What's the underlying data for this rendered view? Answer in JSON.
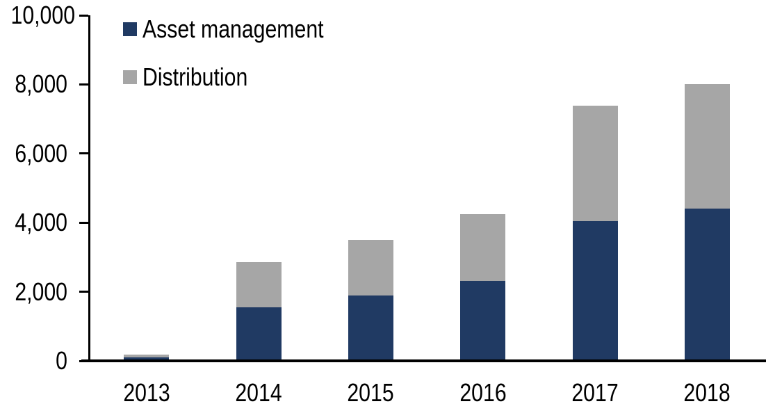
{
  "chart_data": {
    "type": "bar",
    "stacked": true,
    "title": "",
    "xlabel": "",
    "ylabel": "",
    "categories": [
      "2013",
      "2014",
      "2015",
      "2016",
      "2017",
      "2018"
    ],
    "series": [
      {
        "name": "Asset management",
        "color": "#203a63",
        "values": [
          100,
          1540,
          1890,
          2310,
          4040,
          4410
        ]
      },
      {
        "name": "Distribution",
        "color": "#a6a6a6",
        "values": [
          80,
          1310,
          1610,
          1940,
          3340,
          3590
        ]
      }
    ],
    "totals": [
      180,
      2850,
      3500,
      4250,
      7380,
      8000
    ],
    "ylim": [
      0,
      10000
    ],
    "ytick_labels": [
      "0",
      "2,000",
      "4,000",
      "6,000",
      "8,000",
      "10,000"
    ],
    "grid": false,
    "legend_position": "top-left",
    "axis_color": "#000000",
    "background_color": "#ffffff"
  }
}
